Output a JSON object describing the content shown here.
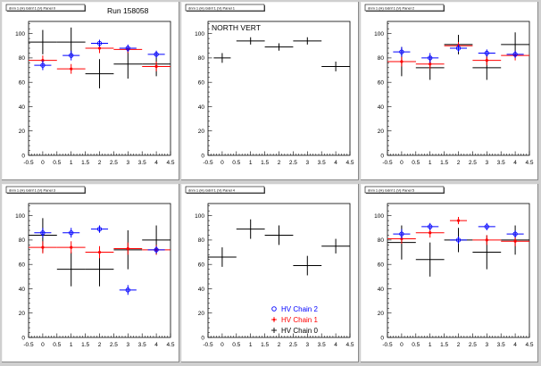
{
  "chart_data": [
    {
      "type": "scatter",
      "title": "dnm 1 (H) Gdnf 1 (V) Panel 0",
      "annotation": "Run 158058",
      "xlim": [
        -0.5,
        4.5
      ],
      "ylim": [
        0,
        110
      ],
      "xticks": [
        "-0.5",
        "0",
        "0.5",
        "1",
        "1.5",
        "2",
        "2.5",
        "3",
        "3.5",
        "4",
        "4.5"
      ],
      "yticks": [
        "0",
        "20",
        "40",
        "60",
        "80",
        "100"
      ],
      "series": [
        {
          "color": "#000000",
          "points": [
            {
              "x": 0,
              "y": 93,
              "ex": 0.5,
              "ey": 10
            },
            {
              "x": 1,
              "y": 93,
              "ex": 0.5,
              "ey": 12
            },
            {
              "x": 2,
              "y": 67,
              "ex": 0.5,
              "ey": 12
            },
            {
              "x": 3,
              "y": 75,
              "ex": 0.5,
              "ey": 12
            },
            {
              "x": 4,
              "y": 75,
              "ex": 0.5,
              "ey": 10
            }
          ]
        },
        {
          "color": "#ff0000",
          "points": [
            {
              "x": 0,
              "y": 78,
              "ex": 0.5,
              "ey": 4
            },
            {
              "x": 1,
              "y": 71,
              "ex": 0.5,
              "ey": 4
            },
            {
              "x": 2,
              "y": 88,
              "ex": 0.5,
              "ey": 4
            },
            {
              "x": 3,
              "y": 87,
              "ex": 0.5,
              "ey": 3
            },
            {
              "x": 4,
              "y": 73,
              "ex": 0.5,
              "ey": 4
            }
          ]
        },
        {
          "color": "#0000ff",
          "points": [
            {
              "x": 0,
              "y": 74,
              "ex": 0.3,
              "ey": 4
            },
            {
              "x": 1,
              "y": 82,
              "ex": 0.3,
              "ey": 4
            },
            {
              "x": 2,
              "y": 92,
              "ex": 0.3,
              "ey": 3
            },
            {
              "x": 3,
              "y": 88,
              "ex": 0.3,
              "ey": 3
            },
            {
              "x": 4,
              "y": 83,
              "ex": 0.3,
              "ey": 3
            }
          ]
        }
      ]
    },
    {
      "type": "scatter",
      "title": "dnm 1 (H) Gdnf 1 (V) Panel 1",
      "annotation": "NORTH VERT",
      "xlim": [
        -0.5,
        4.5
      ],
      "ylim": [
        0,
        110
      ],
      "xticks": [
        "-0.5",
        "0",
        "0.5",
        "1",
        "1.5",
        "2",
        "2.5",
        "3",
        "3.5",
        "4",
        "4.5"
      ],
      "yticks": [
        "0",
        "20",
        "40",
        "60",
        "80",
        "100"
      ],
      "series": [
        {
          "color": "#000000",
          "points": [
            {
              "x": 0,
              "y": 80,
              "ex": 0.3,
              "ey": 4
            },
            {
              "x": 1,
              "y": 94,
              "ex": 0.5,
              "ey": 3
            },
            {
              "x": 2,
              "y": 89,
              "ex": 0.5,
              "ey": 3
            },
            {
              "x": 3,
              "y": 94,
              "ex": 0.5,
              "ey": 3
            },
            {
              "x": 4,
              "y": 73,
              "ex": 0.5,
              "ey": 4
            }
          ]
        }
      ]
    },
    {
      "type": "scatter",
      "title": "dnm 1 (H) Gdnf 1 (V) Panel 2",
      "annotation": "",
      "xlim": [
        -0.5,
        4.5
      ],
      "ylim": [
        0,
        110
      ],
      "xticks": [
        "-0.5",
        "0",
        "0.5",
        "1",
        "1.5",
        "2",
        "2.5",
        "3",
        "3.5",
        "4",
        "4.5"
      ],
      "yticks": [
        "0",
        "20",
        "40",
        "60",
        "80",
        "100"
      ],
      "series": [
        {
          "color": "#000000",
          "points": [
            {
              "x": 0,
              "y": 77,
              "ex": 0.5,
              "ey": 12
            },
            {
              "x": 1,
              "y": 72,
              "ex": 0.5,
              "ey": 10
            },
            {
              "x": 2,
              "y": 91,
              "ex": 0.5,
              "ey": 8
            },
            {
              "x": 3,
              "y": 72,
              "ex": 0.5,
              "ey": 10
            },
            {
              "x": 4,
              "y": 91,
              "ex": 0.5,
              "ey": 10
            }
          ]
        },
        {
          "color": "#ff0000",
          "points": [
            {
              "x": 0,
              "y": 77,
              "ex": 0.5,
              "ey": 4
            },
            {
              "x": 1,
              "y": 75,
              "ex": 0.5,
              "ey": 4
            },
            {
              "x": 2,
              "y": 90,
              "ex": 0.5,
              "ey": 3
            },
            {
              "x": 3,
              "y": 78,
              "ex": 0.5,
              "ey": 4
            },
            {
              "x": 4,
              "y": 82,
              "ex": 0.5,
              "ey": 4
            }
          ]
        },
        {
          "color": "#0000ff",
          "points": [
            {
              "x": 0,
              "y": 85,
              "ex": 0.3,
              "ey": 4
            },
            {
              "x": 1,
              "y": 80,
              "ex": 0.3,
              "ey": 4
            },
            {
              "x": 2,
              "y": 88,
              "ex": 0.3,
              "ey": 3
            },
            {
              "x": 3,
              "y": 84,
              "ex": 0.3,
              "ey": 3
            },
            {
              "x": 4,
              "y": 83,
              "ex": 0.3,
              "ey": 3
            }
          ]
        }
      ]
    },
    {
      "type": "scatter",
      "title": "dnm 1 (H) Gdnf 1 (V) Panel 3",
      "annotation": "",
      "xlim": [
        -0.5,
        4.5
      ],
      "ylim": [
        0,
        110
      ],
      "xticks": [
        "-0.5",
        "0",
        "0.5",
        "1",
        "1.5",
        "2",
        "2.5",
        "3",
        "3.5",
        "4",
        "4.5"
      ],
      "yticks": [
        "0",
        "20",
        "40",
        "60",
        "80",
        "100"
      ],
      "series": [
        {
          "color": "#000000",
          "points": [
            {
              "x": 0,
              "y": 84,
              "ex": 0.5,
              "ey": 14
            },
            {
              "x": 1,
              "y": 56,
              "ex": 0.5,
              "ey": 14
            },
            {
              "x": 2,
              "y": 56,
              "ex": 0.5,
              "ey": 14
            },
            {
              "x": 3,
              "y": 72,
              "ex": 0.5,
              "ey": 16
            },
            {
              "x": 4,
              "y": 80,
              "ex": 0.5,
              "ey": 12
            }
          ]
        },
        {
          "color": "#ff0000",
          "points": [
            {
              "x": 0,
              "y": 74,
              "ex": 0.5,
              "ey": 5
            },
            {
              "x": 1,
              "y": 74,
              "ex": 0.5,
              "ey": 5
            },
            {
              "x": 2,
              "y": 70,
              "ex": 0.5,
              "ey": 5
            },
            {
              "x": 3,
              "y": 73,
              "ex": 0.5,
              "ey": 5
            },
            {
              "x": 4,
              "y": 72,
              "ex": 0.5,
              "ey": 4
            }
          ]
        },
        {
          "color": "#0000ff",
          "points": [
            {
              "x": 0,
              "y": 86,
              "ex": 0.3,
              "ey": 4
            },
            {
              "x": 1,
              "y": 86,
              "ex": 0.3,
              "ey": 4
            },
            {
              "x": 2,
              "y": 89,
              "ex": 0.3,
              "ey": 3
            },
            {
              "x": 3,
              "y": 39,
              "ex": 0.3,
              "ey": 4
            },
            {
              "x": 4,
              "y": 72,
              "ex": 0.3,
              "ey": 3
            }
          ]
        }
      ]
    },
    {
      "type": "scatter",
      "title": "dnm 1 (H) Gdnf 1 (V) Panel 4",
      "annotation": "",
      "xlim": [
        -0.5,
        4.5
      ],
      "ylim": [
        0,
        110
      ],
      "xticks": [
        "-0.5",
        "0",
        "0.5",
        "1",
        "1.5",
        "2",
        "2.5",
        "3",
        "3.5",
        "4",
        "4.5"
      ],
      "yticks": [
        "0",
        "20",
        "40",
        "60",
        "80",
        "100"
      ],
      "legend": {
        "placement": "bottom-right",
        "entries": [
          {
            "label": "HV Chain 2",
            "color": "#0000ff",
            "marker": "circle"
          },
          {
            "label": "HV Chain 1",
            "color": "#ff0000",
            "marker": "star"
          },
          {
            "label": "HV Chain 0",
            "color": "#000000",
            "marker": "cross"
          }
        ]
      },
      "series": [
        {
          "color": "#000000",
          "points": [
            {
              "x": 0,
              "y": 66,
              "ex": 0.5,
              "ey": 8
            },
            {
              "x": 1,
              "y": 89,
              "ex": 0.5,
              "ey": 8
            },
            {
              "x": 2,
              "y": 84,
              "ex": 0.5,
              "ey": 8
            },
            {
              "x": 3,
              "y": 59,
              "ex": 0.5,
              "ey": 8
            },
            {
              "x": 4,
              "y": 75,
              "ex": 0.5,
              "ey": 6
            }
          ]
        }
      ]
    },
    {
      "type": "scatter",
      "title": "dnm 1 (H) Gdnf 1 (V) Panel 5",
      "annotation": "",
      "xlim": [
        -0.5,
        4.5
      ],
      "ylim": [
        0,
        110
      ],
      "xticks": [
        "-0.5",
        "0",
        "0.5",
        "1",
        "1.5",
        "2",
        "2.5",
        "3",
        "3.5",
        "4",
        "4.5"
      ],
      "yticks": [
        "0",
        "20",
        "40",
        "60",
        "80",
        "100"
      ],
      "series": [
        {
          "color": "#000000",
          "points": [
            {
              "x": 0,
              "y": 78,
              "ex": 0.5,
              "ey": 14
            },
            {
              "x": 1,
              "y": 64,
              "ex": 0.5,
              "ey": 14
            },
            {
              "x": 2,
              "y": 80,
              "ex": 0.5,
              "ey": 10
            },
            {
              "x": 3,
              "y": 70,
              "ex": 0.5,
              "ey": 14
            },
            {
              "x": 4,
              "y": 80,
              "ex": 0.5,
              "ey": 12
            }
          ]
        },
        {
          "color": "#ff0000",
          "points": [
            {
              "x": 0,
              "y": 81,
              "ex": 0.5,
              "ey": 4
            },
            {
              "x": 1,
              "y": 86,
              "ex": 0.5,
              "ey": 4
            },
            {
              "x": 2,
              "y": 96,
              "ex": 0.3,
              "ey": 3
            },
            {
              "x": 3,
              "y": 80,
              "ex": 0.5,
              "ey": 4
            },
            {
              "x": 4,
              "y": 79,
              "ex": 0.5,
              "ey": 4
            }
          ]
        },
        {
          "color": "#0000ff",
          "points": [
            {
              "x": 0,
              "y": 85,
              "ex": 0.3,
              "ey": 4
            },
            {
              "x": 1,
              "y": 91,
              "ex": 0.3,
              "ey": 3
            },
            {
              "x": 2,
              "y": 80,
              "ex": 0.3,
              "ey": 3
            },
            {
              "x": 3,
              "y": 91,
              "ex": 0.3,
              "ey": 3
            },
            {
              "x": 4,
              "y": 85,
              "ex": 0.3,
              "ey": 3
            }
          ]
        }
      ]
    }
  ]
}
